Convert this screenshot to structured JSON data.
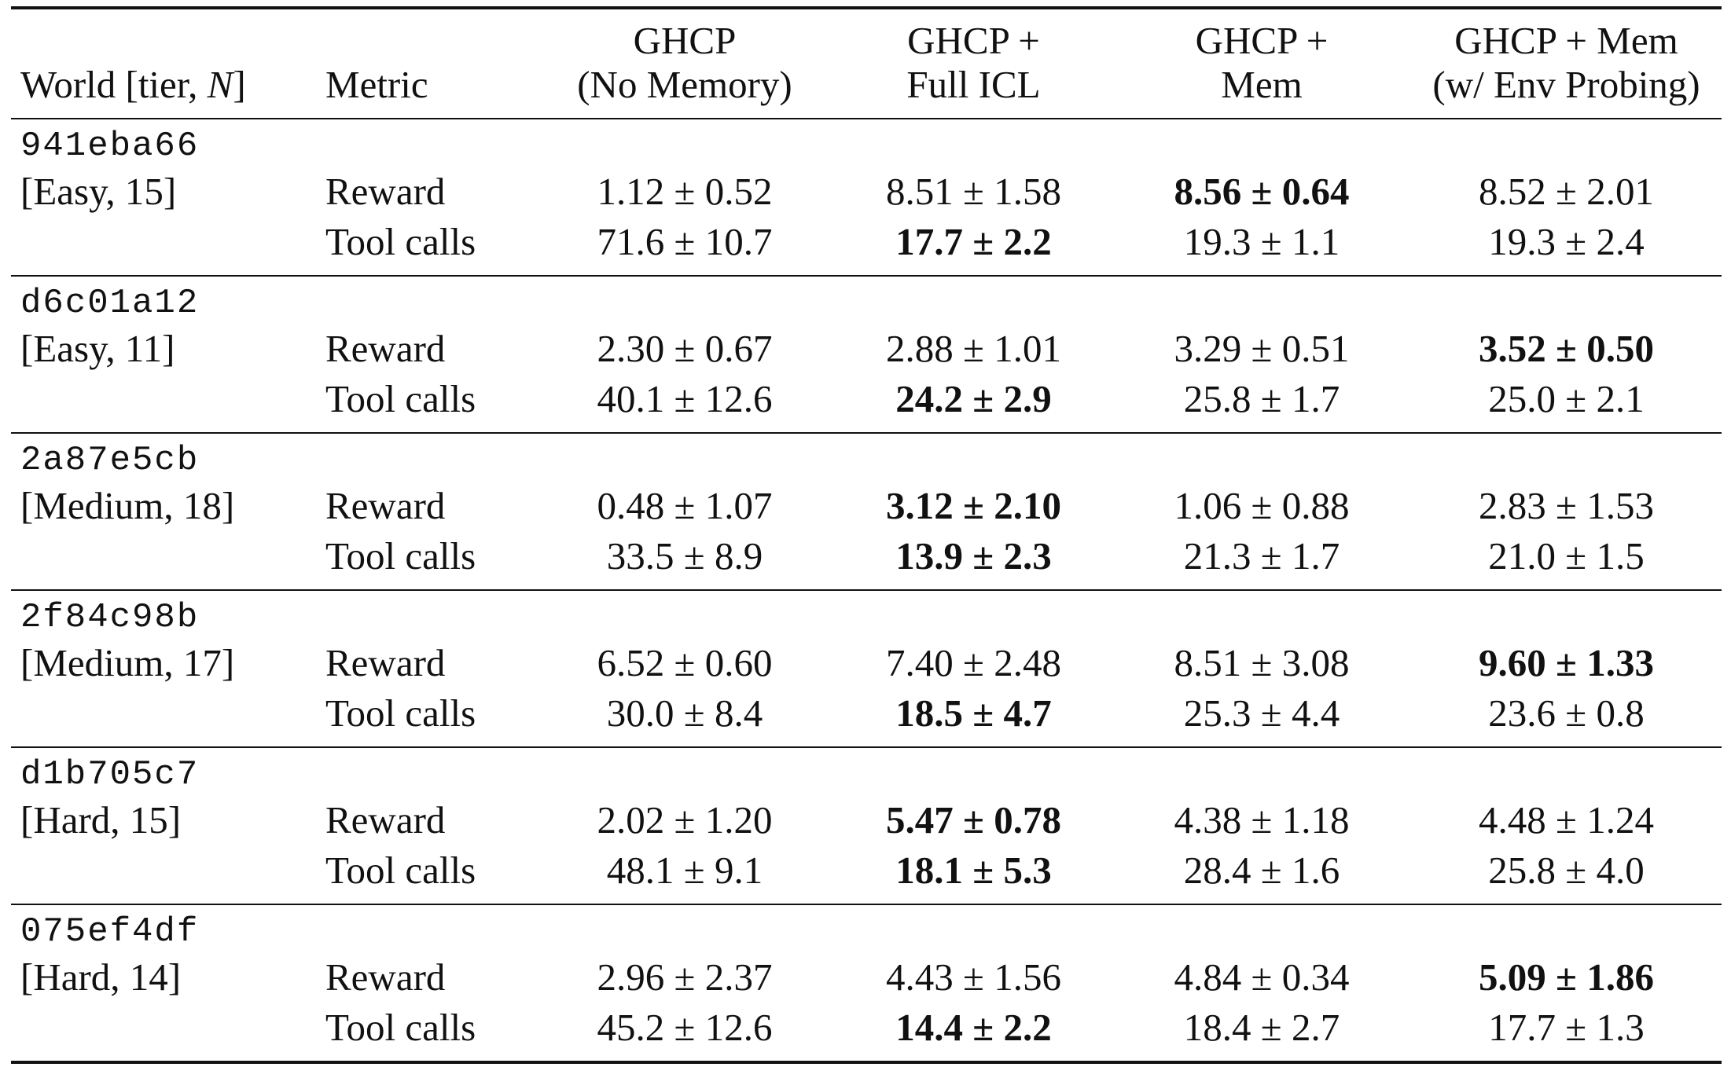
{
  "table": {
    "header": {
      "world": "World [tier, ",
      "world_n": "N",
      "world_close": "]",
      "metric": "Metric",
      "methods": [
        {
          "line1": "GHCP",
          "line2": "(No Memory)"
        },
        {
          "line1": "GHCP +",
          "line2": "Full ICL"
        },
        {
          "line1": "GHCP +",
          "line2": "Mem"
        },
        {
          "line1": "GHCP + Mem",
          "line2": "(w/ Env Probing)"
        }
      ]
    },
    "groups": [
      {
        "id": "941eba66",
        "tier": "[Easy, 15]",
        "rows": [
          {
            "metric": "Reward",
            "values": [
              "1.12 ± 0.52",
              "8.51 ± 1.58",
              "8.56 ± 0.64",
              "8.52 ± 2.01"
            ],
            "best": 2
          },
          {
            "metric": "Tool calls",
            "values": [
              "71.6 ± 10.7",
              "17.7 ± 2.2",
              "19.3 ± 1.1",
              "19.3 ± 2.4"
            ],
            "best": 1
          }
        ]
      },
      {
        "id": "d6c01a12",
        "tier": "[Easy, 11]",
        "rows": [
          {
            "metric": "Reward",
            "values": [
              "2.30 ± 0.67",
              "2.88 ± 1.01",
              "3.29 ± 0.51",
              "3.52 ± 0.50"
            ],
            "best": 3
          },
          {
            "metric": "Tool calls",
            "values": [
              "40.1 ± 12.6",
              "24.2 ± 2.9",
              "25.8 ± 1.7",
              "25.0 ± 2.1"
            ],
            "best": 1
          }
        ]
      },
      {
        "id": "2a87e5cb",
        "tier": "[Medium, 18]",
        "rows": [
          {
            "metric": "Reward",
            "values": [
              "0.48 ± 1.07",
              "3.12 ± 2.10",
              "1.06 ± 0.88",
              "2.83 ± 1.53"
            ],
            "best": 1
          },
          {
            "metric": "Tool calls",
            "values": [
              "33.5 ± 8.9",
              "13.9 ± 2.3",
              "21.3 ± 1.7",
              "21.0 ± 1.5"
            ],
            "best": 1
          }
        ]
      },
      {
        "id": "2f84c98b",
        "tier": "[Medium, 17]",
        "rows": [
          {
            "metric": "Reward",
            "values": [
              "6.52 ± 0.60",
              "7.40 ± 2.48",
              "8.51 ± 3.08",
              "9.60 ± 1.33"
            ],
            "best": 3
          },
          {
            "metric": "Tool calls",
            "values": [
              "30.0 ± 8.4",
              "18.5 ± 4.7",
              "25.3 ± 4.4",
              "23.6 ± 0.8"
            ],
            "best": 1
          }
        ]
      },
      {
        "id": "d1b705c7",
        "tier": "[Hard, 15]",
        "rows": [
          {
            "metric": "Reward",
            "values": [
              "2.02 ± 1.20",
              "5.47 ± 0.78",
              "4.38 ± 1.18",
              "4.48 ± 1.24"
            ],
            "best": 1
          },
          {
            "metric": "Tool calls",
            "values": [
              "48.1 ± 9.1",
              "18.1 ± 5.3",
              "28.4 ± 1.6",
              "25.8 ± 4.0"
            ],
            "best": 1
          }
        ]
      },
      {
        "id": "075ef4df",
        "tier": "[Hard, 14]",
        "rows": [
          {
            "metric": "Reward",
            "values": [
              "2.96 ± 2.37",
              "4.43 ± 1.56",
              "4.84 ± 0.34",
              "5.09 ± 1.86"
            ],
            "best": 3
          },
          {
            "metric": "Tool calls",
            "values": [
              "45.2 ± 12.6",
              "14.4 ± 2.2",
              "18.4 ± 2.7",
              "17.7 ± 1.3"
            ],
            "best": 1
          }
        ]
      }
    ]
  }
}
